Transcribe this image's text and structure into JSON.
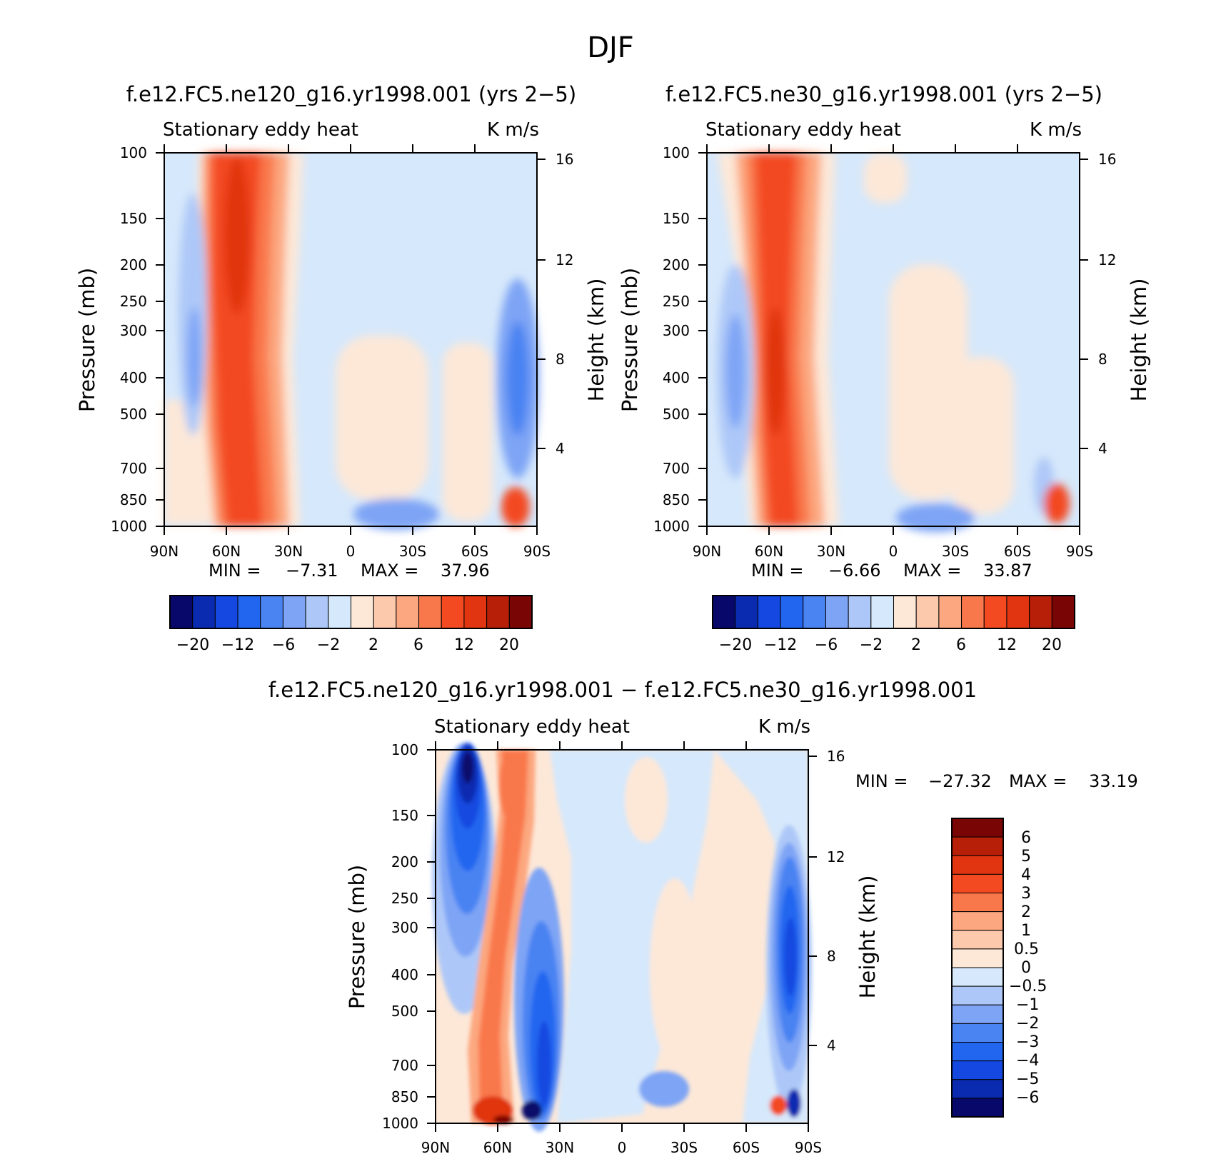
{
  "figure": {
    "title": "DJF"
  },
  "colors": {
    "abs_palette": [
      "#08086b",
      "#0a2bb0",
      "#1448e0",
      "#2266f0",
      "#4a83f2",
      "#7ea4f5",
      "#adc8f8",
      "#d6e8fb",
      "#fde8d8",
      "#fcc9ac",
      "#fca77f",
      "#f9784b",
      "#f34a22",
      "#e03510",
      "#b81f08",
      "#7a0505"
    ],
    "diff_palette": [
      "#08086b",
      "#0a2bb0",
      "#1448e0",
      "#2266f0",
      "#4a83f2",
      "#7ea4f5",
      "#adc8f8",
      "#d6e8fb",
      "#fde8d8",
      "#fcc9ac",
      "#fca77f",
      "#f9784b",
      "#f34a22",
      "#e03510",
      "#b81f08",
      "#7a0505"
    ]
  },
  "chart_data": [
    {
      "type": "contour",
      "title": "f.e12.FC5.ne120_g16.yr1998.001 (yrs 2-5)",
      "display_title": "f.e12.FC5.ne120_g16.yr1998.001 (yrs 2−5)",
      "subtitle_left": "Stationary eddy heat",
      "subtitle_right": "K m/s",
      "xlabel": "",
      "ylabel": "Pressure (mb)",
      "ylabel_right": "Height (km)",
      "x_ticks": [
        "90N",
        "60N",
        "30N",
        "0",
        "30S",
        "60S",
        "90S"
      ],
      "x_range": [
        90,
        -90
      ],
      "y_ticks": [
        "100",
        "150",
        "200",
        "250",
        "300",
        "400",
        "500",
        "700",
        "850",
        "1000"
      ],
      "y_range_mb": [
        100,
        1000
      ],
      "y_right_ticks": [
        "16",
        "12",
        "8",
        "4"
      ],
      "min_label": "MIN =",
      "min_value": "-7.31",
      "display_min": "−7.31",
      "max_label": "MAX =",
      "max_value": "37.96",
      "colorbar_ticks": [
        "−20",
        "−12",
        "−6",
        "−2",
        "2",
        "6",
        "12",
        "20"
      ],
      "features": [
        {
          "name": "northern-storm-track",
          "lat": 50,
          "peak": 37.96,
          "sign": "positive"
        },
        {
          "name": "polar-negative",
          "lat": 78,
          "peak": -3,
          "sign": "negative"
        },
        {
          "name": "southern-polar-negative",
          "lat": -80,
          "peak": -7.31,
          "sign": "negative"
        }
      ]
    },
    {
      "type": "contour",
      "title": "f.e12.FC5.ne30_g16.yr1998.001 (yrs 2-5)",
      "display_title": "f.e12.FC5.ne30_g16.yr1998.001 (yrs 2−5)",
      "subtitle_left": "Stationary eddy heat",
      "subtitle_right": "K m/s",
      "xlabel": "",
      "ylabel": "Pressure (mb)",
      "ylabel_right": "Height (km)",
      "x_ticks": [
        "90N",
        "60N",
        "30N",
        "0",
        "30S",
        "60S",
        "90S"
      ],
      "x_range": [
        90,
        -90
      ],
      "y_ticks": [
        "100",
        "150",
        "200",
        "250",
        "300",
        "400",
        "500",
        "700",
        "850",
        "1000"
      ],
      "y_range_mb": [
        100,
        1000
      ],
      "y_right_ticks": [
        "16",
        "12",
        "8",
        "4"
      ],
      "min_label": "MIN =",
      "min_value": "-6.66",
      "display_min": "−6.66",
      "max_label": "MAX =",
      "max_value": "33.87",
      "colorbar_ticks": [
        "−20",
        "−12",
        "−6",
        "−2",
        "2",
        "6",
        "12",
        "20"
      ],
      "features": [
        {
          "name": "northern-storm-track",
          "lat": 48,
          "peak": 33.87,
          "sign": "positive"
        },
        {
          "name": "polar-negative",
          "lat": 76,
          "peak": -4,
          "sign": "negative"
        }
      ]
    },
    {
      "type": "contour",
      "title": "f.e12.FC5.ne120_g16.yr1998.001 - f.e12.FC5.ne30_g16.yr1998.001",
      "display_title": "f.e12.FC5.ne120_g16.yr1998.001 − f.e12.FC5.ne30_g16.yr1998.001",
      "subtitle_left": "Stationary eddy heat",
      "subtitle_right": "K m/s",
      "xlabel": "",
      "ylabel": "Pressure (mb)",
      "ylabel_right": "Height (km)",
      "x_ticks": [
        "90N",
        "60N",
        "30N",
        "0",
        "30S",
        "60S",
        "90S"
      ],
      "x_range": [
        90,
        -90
      ],
      "y_ticks": [
        "100",
        "150",
        "200",
        "250",
        "300",
        "400",
        "500",
        "700",
        "850",
        "1000"
      ],
      "y_range_mb": [
        100,
        1000
      ],
      "y_right_ticks": [
        "16",
        "12",
        "8",
        "4"
      ],
      "min_label": "MIN =",
      "min_value": "-27.32",
      "display_min": "−27.32",
      "max_label": "MAX =",
      "max_value": "33.19",
      "colorbar_ticks": [
        "6",
        "5",
        "4",
        "3",
        "2",
        "1",
        "0.5",
        "0",
        "−0.5",
        "−1",
        "−2",
        "−3",
        "−4",
        "−5",
        "−6"
      ],
      "features": [
        {
          "name": "polar-negative",
          "lat": 75,
          "peak": -27.32,
          "sign": "negative"
        },
        {
          "name": "midlatitude-positive",
          "lat": 55,
          "peak": 33.19,
          "sign": "positive"
        },
        {
          "name": "subtropical-negative",
          "lat": 40,
          "peak": -6,
          "sign": "negative"
        },
        {
          "name": "southern-polar-negative",
          "lat": -82,
          "peak": -6,
          "sign": "negative"
        }
      ]
    }
  ]
}
